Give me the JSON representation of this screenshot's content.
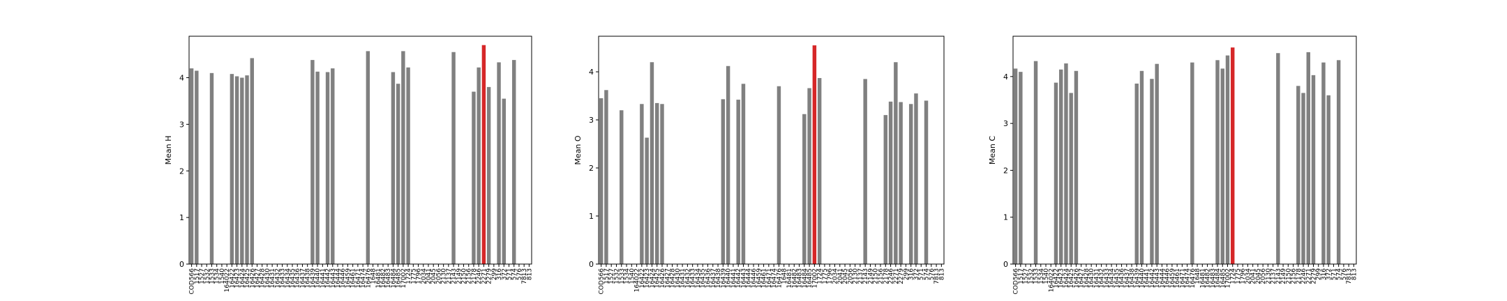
{
  "chart_data": [
    {
      "type": "bar",
      "ylabel": "Mean H",
      "categories": [
        "COD566",
        "1517",
        "1527",
        "1532",
        "1533",
        "1534",
        "1540",
        "164022",
        "16422",
        "16423",
        "16424",
        "16425",
        "16426",
        "16427",
        "16428",
        "16430",
        "16431",
        "16432",
        "16433",
        "16434",
        "16435",
        "16436",
        "16437",
        "16438",
        "16439",
        "16440",
        "16441",
        "16442",
        "16443",
        "16444",
        "16446",
        "16459",
        "16461",
        "16471",
        "16474",
        "16476",
        "1648",
        "16481",
        "16482",
        "16483",
        "16484",
        "16485",
        "17002",
        "1724",
        "1775",
        "1796",
        "2034",
        "2041",
        "2045",
        "2056",
        "2130",
        "2137",
        "2143",
        "2149",
        "2150",
        "2156",
        "2178",
        "2246",
        "2271",
        "2279",
        "299",
        "316",
        "372",
        "571",
        "574",
        "576",
        "7813",
        "813"
      ],
      "values": [
        4.2,
        4.15,
        0,
        0,
        4.1,
        0,
        0,
        0,
        4.08,
        4.03,
        4.0,
        4.05,
        4.42,
        0,
        0,
        0,
        0,
        0,
        0,
        0,
        0,
        0,
        0,
        0,
        4.38,
        4.13,
        0,
        4.12,
        4.2,
        0,
        0,
        0,
        0,
        0,
        0,
        4.57,
        0,
        0,
        0,
        0,
        4.12,
        3.87,
        4.57,
        4.22,
        0,
        0,
        0,
        0,
        0,
        0,
        0,
        0,
        4.55,
        0,
        0,
        0,
        3.7,
        4.22,
        4.7,
        3.8,
        0,
        4.33,
        3.55,
        0,
        4.38,
        0,
        0,
        0
      ],
      "colors": [
        "#808080",
        "#808080",
        "#808080",
        "#808080",
        "#808080",
        "#808080",
        "#808080",
        "#808080",
        "#808080",
        "#808080",
        "#808080",
        "#808080",
        "#808080",
        "#808080",
        "#808080",
        "#808080",
        "#808080",
        "#808080",
        "#808080",
        "#808080",
        "#808080",
        "#808080",
        "#808080",
        "#808080",
        "#808080",
        "#808080",
        "#808080",
        "#808080",
        "#808080",
        "#808080",
        "#808080",
        "#808080",
        "#808080",
        "#808080",
        "#808080",
        "#808080",
        "#808080",
        "#808080",
        "#808080",
        "#808080",
        "#808080",
        "#808080",
        "#808080",
        "#808080",
        "#808080",
        "#808080",
        "#808080",
        "#808080",
        "#808080",
        "#808080",
        "#808080",
        "#808080",
        "#808080",
        "#808080",
        "#808080",
        "#808080",
        "#808080",
        "#808080",
        "#d62728",
        "#808080",
        "#808080",
        "#808080",
        "#808080",
        "#808080",
        "#808080",
        "#808080",
        "#808080",
        "#808080"
      ],
      "ylim": [
        0,
        4.89
      ],
      "yticks": [
        0,
        1,
        2,
        3,
        4
      ]
    },
    {
      "type": "bar",
      "ylabel": "Mean O",
      "categories": [
        "COD566",
        "1517",
        "1527",
        "1532",
        "1533",
        "1534",
        "1540",
        "164022",
        "16422",
        "16423",
        "16424",
        "16425",
        "16426",
        "16427",
        "16428",
        "16430",
        "16431",
        "16432",
        "16433",
        "16434",
        "16435",
        "16436",
        "16437",
        "16438",
        "16439",
        "16440",
        "16441",
        "16442",
        "16443",
        "16444",
        "16446",
        "16459",
        "16461",
        "16471",
        "16474",
        "16476",
        "1648",
        "16481",
        "16482",
        "16483",
        "16484",
        "16485",
        "17002",
        "1724",
        "1775",
        "1796",
        "2034",
        "2041",
        "2045",
        "2056",
        "2130",
        "2137",
        "2143",
        "2149",
        "2150",
        "2156",
        "2178",
        "2246",
        "2271",
        "2279",
        "299",
        "316",
        "372",
        "571",
        "574",
        "576",
        "7813",
        "813"
      ],
      "values": [
        3.45,
        3.62,
        0,
        0,
        3.2,
        0,
        0,
        0,
        3.33,
        2.63,
        4.2,
        3.35,
        3.33,
        0,
        0,
        0,
        0,
        0,
        0,
        0,
        0,
        0,
        0,
        0,
        3.43,
        4.12,
        0,
        3.42,
        3.75,
        0,
        0,
        0,
        0,
        0,
        0,
        3.7,
        0,
        0,
        0,
        0,
        3.12,
        3.66,
        4.55,
        3.87,
        0,
        0,
        0,
        0,
        0,
        0,
        0,
        0,
        3.85,
        0,
        0,
        0,
        3.1,
        3.38,
        4.2,
        3.37,
        0,
        3.33,
        3.55,
        0,
        3.4,
        0,
        0,
        0
      ],
      "colors": [
        "#808080",
        "#808080",
        "#808080",
        "#808080",
        "#808080",
        "#808080",
        "#808080",
        "#808080",
        "#808080",
        "#808080",
        "#808080",
        "#808080",
        "#808080",
        "#808080",
        "#808080",
        "#808080",
        "#808080",
        "#808080",
        "#808080",
        "#808080",
        "#808080",
        "#808080",
        "#808080",
        "#808080",
        "#808080",
        "#808080",
        "#808080",
        "#808080",
        "#808080",
        "#808080",
        "#808080",
        "#808080",
        "#808080",
        "#808080",
        "#808080",
        "#808080",
        "#808080",
        "#808080",
        "#808080",
        "#808080",
        "#808080",
        "#808080",
        "#d62728",
        "#808080",
        "#808080",
        "#808080",
        "#808080",
        "#808080",
        "#808080",
        "#808080",
        "#808080",
        "#808080",
        "#808080",
        "#808080",
        "#808080",
        "#808080",
        "#808080",
        "#808080",
        "#808080",
        "#808080",
        "#808080",
        "#808080",
        "#808080",
        "#808080",
        "#808080",
        "#808080",
        "#808080",
        "#808080"
      ],
      "ylim": [
        0,
        4.74
      ],
      "yticks": [
        0,
        1,
        2,
        3,
        4
      ]
    },
    {
      "type": "bar",
      "ylabel": "Mean C",
      "categories": [
        "COD566",
        "1517",
        "1527",
        "1532",
        "1533",
        "1534",
        "1540",
        "164022",
        "16422",
        "16423",
        "16424",
        "16425",
        "16426",
        "16427",
        "16428",
        "16430",
        "16431",
        "16432",
        "16433",
        "16434",
        "16435",
        "16436",
        "16437",
        "16438",
        "16439",
        "16440",
        "16441",
        "16442",
        "16443",
        "16444",
        "16446",
        "16459",
        "16461",
        "16471",
        "16474",
        "16476",
        "1648",
        "16481",
        "16482",
        "16483",
        "16484",
        "16485",
        "17002",
        "1724",
        "1775",
        "1796",
        "2034",
        "2041",
        "2045",
        "2056",
        "2130",
        "2137",
        "2143",
        "2149",
        "2150",
        "2156",
        "2178",
        "2246",
        "2271",
        "2279",
        "299",
        "316",
        "372",
        "571",
        "574",
        "576",
        "7813",
        "813"
      ],
      "values": [
        4.17,
        4.1,
        0,
        0,
        4.33,
        0,
        0,
        0,
        3.87,
        4.15,
        4.28,
        3.65,
        4.12,
        0,
        0,
        0,
        0,
        0,
        0,
        0,
        0,
        0,
        0,
        0,
        3.85,
        4.12,
        0,
        3.95,
        4.27,
        0,
        0,
        0,
        0,
        0,
        0,
        4.3,
        0,
        0,
        0,
        0,
        4.35,
        4.17,
        4.45,
        4.62,
        0,
        0,
        0,
        0,
        0,
        0,
        0,
        0,
        4.5,
        0,
        0,
        0,
        3.8,
        3.65,
        4.52,
        4.03,
        0,
        4.3,
        3.6,
        0,
        4.35,
        0,
        0,
        0
      ],
      "colors": [
        "#808080",
        "#808080",
        "#808080",
        "#808080",
        "#808080",
        "#808080",
        "#808080",
        "#808080",
        "#808080",
        "#808080",
        "#808080",
        "#808080",
        "#808080",
        "#808080",
        "#808080",
        "#808080",
        "#808080",
        "#808080",
        "#808080",
        "#808080",
        "#808080",
        "#808080",
        "#808080",
        "#808080",
        "#808080",
        "#808080",
        "#808080",
        "#808080",
        "#808080",
        "#808080",
        "#808080",
        "#808080",
        "#808080",
        "#808080",
        "#808080",
        "#808080",
        "#808080",
        "#808080",
        "#808080",
        "#808080",
        "#808080",
        "#808080",
        "#808080",
        "#d62728",
        "#808080",
        "#808080",
        "#808080",
        "#808080",
        "#808080",
        "#808080",
        "#808080",
        "#808080",
        "#808080",
        "#808080",
        "#808080",
        "#808080",
        "#808080",
        "#808080",
        "#808080",
        "#808080",
        "#808080",
        "#808080",
        "#808080",
        "#808080",
        "#808080",
        "#808080",
        "#808080",
        "#808080"
      ],
      "ylim": [
        0,
        4.86
      ],
      "yticks": [
        0,
        1,
        2,
        3,
        4
      ]
    }
  ]
}
